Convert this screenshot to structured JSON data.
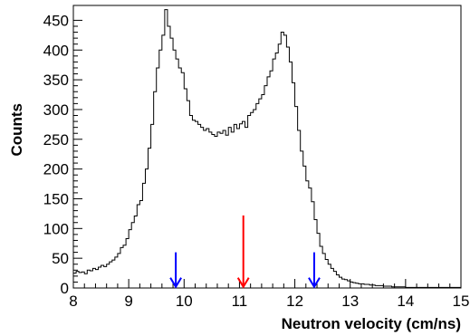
{
  "chart_data": {
    "type": "histogram",
    "title": "",
    "xlabel": "Neutron velocity (cm/ns)",
    "ylabel": "Counts",
    "xlim": [
      8,
      15
    ],
    "ylim": [
      0,
      475
    ],
    "x_ticks": [
      8,
      9,
      10,
      11,
      12,
      13,
      14,
      15
    ],
    "x_tick_labels": [
      "8",
      "9",
      "10",
      "11",
      "12",
      "13",
      "14",
      "15"
    ],
    "y_ticks": [
      0,
      50,
      100,
      150,
      200,
      250,
      300,
      350,
      400,
      450
    ],
    "y_tick_labels": [
      "0",
      "50",
      "100",
      "150",
      "200",
      "250",
      "300",
      "350",
      "400",
      "450"
    ],
    "grid": false,
    "legend": "none",
    "bin_width": 0.05,
    "bin_start": 8.0,
    "series": [
      {
        "color": "#000000",
        "values": [
          25,
          28,
          26,
          27,
          24,
          30,
          29,
          33,
          31,
          35,
          38,
          36,
          40,
          44,
          47,
          52,
          58,
          68,
          72,
          83,
          98,
          110,
          121,
          140,
          147,
          176,
          200,
          235,
          275,
          330,
          370,
          400,
          425,
          468,
          440,
          420,
          400,
          385,
          370,
          362,
          335,
          315,
          290,
          282,
          280,
          275,
          270,
          265,
          268,
          262,
          258,
          255,
          262,
          260,
          265,
          257,
          270,
          262,
          275,
          268,
          276,
          280,
          270,
          290,
          295,
          300,
          310,
          318,
          325,
          340,
          355,
          365,
          385,
          395,
          410,
          430,
          425,
          405,
          380,
          345,
          305,
          265,
          230,
          205,
          180,
          168,
          145,
          115,
          92,
          70,
          58,
          48,
          40,
          33,
          28,
          22,
          18,
          15,
          14,
          12,
          10,
          9,
          8,
          7,
          7,
          6,
          6,
          5,
          5,
          4,
          4,
          4,
          3,
          3,
          3,
          2,
          2,
          2,
          2,
          2,
          1,
          1,
          1,
          1,
          1,
          1,
          1,
          1,
          1,
          1,
          1,
          1,
          1,
          1,
          1,
          1,
          1,
          1,
          1,
          1
        ]
      }
    ],
    "annotations": [
      {
        "type": "arrow",
        "x": 9.85,
        "y_top": 60,
        "y_bottom": 2,
        "color": "#0000ff"
      },
      {
        "type": "arrow",
        "x": 11.07,
        "y_top": 122,
        "y_bottom": 2,
        "color": "#ff0000"
      },
      {
        "type": "arrow",
        "x": 12.35,
        "y_top": 60,
        "y_bottom": 2,
        "color": "#0000ff"
      }
    ]
  }
}
